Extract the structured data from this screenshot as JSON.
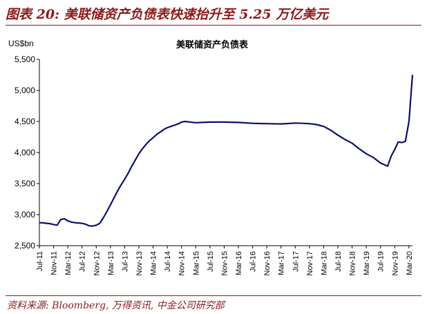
{
  "figure": {
    "title": "图表 20: 美联储资产负债表快速抬升至 5.25 万亿美元",
    "source": "资料来源: Bloomberg, 万得资讯, 中金公司研究部"
  },
  "colors": {
    "accent": "#8b1a1a",
    "series": "#0b0f6e",
    "axis": "#000000"
  },
  "chart_data": {
    "type": "line",
    "title": "美联储资产负债表",
    "ylabel": "US$bn",
    "xlabel": "",
    "ylim": [
      2500,
      5500
    ],
    "yticks": [
      2500,
      3000,
      3500,
      4000,
      4500,
      5000,
      5500
    ],
    "ytick_labels": [
      "2,500",
      "3,000",
      "3,500",
      "4,000",
      "4,500",
      "5,000",
      "5,500"
    ],
    "grid": false,
    "legend": "none",
    "x_range": [
      "2011-07",
      "2020-04"
    ],
    "xticks": [
      "2011-07",
      "2011-11",
      "2012-03",
      "2012-07",
      "2012-11",
      "2013-03",
      "2013-07",
      "2013-11",
      "2014-03",
      "2014-07",
      "2014-11",
      "2015-03",
      "2015-07",
      "2015-11",
      "2016-03",
      "2016-07",
      "2016-11",
      "2017-03",
      "2017-07",
      "2017-11",
      "2018-03",
      "2018-07",
      "2018-11",
      "2019-03",
      "2019-07",
      "2019-11",
      "2020-03"
    ],
    "xtick_labels": [
      "Jul-11",
      "Nov-11",
      "Mar-12",
      "Jul-12",
      "Nov-12",
      "Mar-13",
      "Jul-13",
      "Nov-13",
      "Mar-14",
      "Jul-14",
      "Nov-14",
      "Mar-15",
      "Jul-15",
      "Nov-15",
      "Mar-16",
      "Jul-16",
      "Nov-16",
      "Mar-17",
      "Jul-17",
      "Nov-17",
      "Mar-18",
      "Jul-18",
      "Nov-18",
      "Mar-19",
      "Jul-19",
      "Nov-19",
      "Mar-20"
    ],
    "series": [
      {
        "x": [
          "2011-07",
          "2011-08",
          "2011-09",
          "2011-10",
          "2011-11",
          "2011-12",
          "2012-01",
          "2012-02",
          "2012-03",
          "2012-04",
          "2012-05",
          "2012-06",
          "2012-07",
          "2012-08",
          "2012-09",
          "2012-10",
          "2012-11",
          "2012-12",
          "2013-01",
          "2013-02",
          "2013-03",
          "2013-04",
          "2013-05",
          "2013-06",
          "2013-07",
          "2013-08",
          "2013-09",
          "2013-10",
          "2013-11",
          "2013-12",
          "2014-01",
          "2014-02",
          "2014-03",
          "2014-04",
          "2014-05",
          "2014-06",
          "2014-07",
          "2014-08",
          "2014-09",
          "2014-10",
          "2014-11",
          "2014-12",
          "2015-03",
          "2015-07",
          "2015-11",
          "2016-03",
          "2016-07",
          "2016-11",
          "2017-03",
          "2017-07",
          "2017-09",
          "2017-11",
          "2018-01",
          "2018-03",
          "2018-05",
          "2018-07",
          "2018-09",
          "2018-11",
          "2019-01",
          "2019-03",
          "2019-05",
          "2019-07",
          "2019-09",
          "2019-10",
          "2019-11",
          "2019-12",
          "2020-01",
          "2020-02",
          "2020-03",
          "2020-04"
        ],
        "values": [
          2870,
          2868,
          2860,
          2855,
          2840,
          2830,
          2920,
          2935,
          2900,
          2880,
          2870,
          2865,
          2860,
          2845,
          2820,
          2815,
          2830,
          2860,
          2950,
          3050,
          3160,
          3270,
          3380,
          3480,
          3570,
          3670,
          3780,
          3880,
          3980,
          4060,
          4130,
          4190,
          4240,
          4290,
          4330,
          4370,
          4400,
          4420,
          4440,
          4460,
          4490,
          4500,
          4480,
          4490,
          4490,
          4485,
          4470,
          4465,
          4460,
          4475,
          4470,
          4465,
          4450,
          4420,
          4360,
          4280,
          4210,
          4150,
          4060,
          3980,
          3920,
          3830,
          3780,
          3940,
          4050,
          4170,
          4160,
          4180,
          4500,
          5250
        ]
      }
    ]
  }
}
